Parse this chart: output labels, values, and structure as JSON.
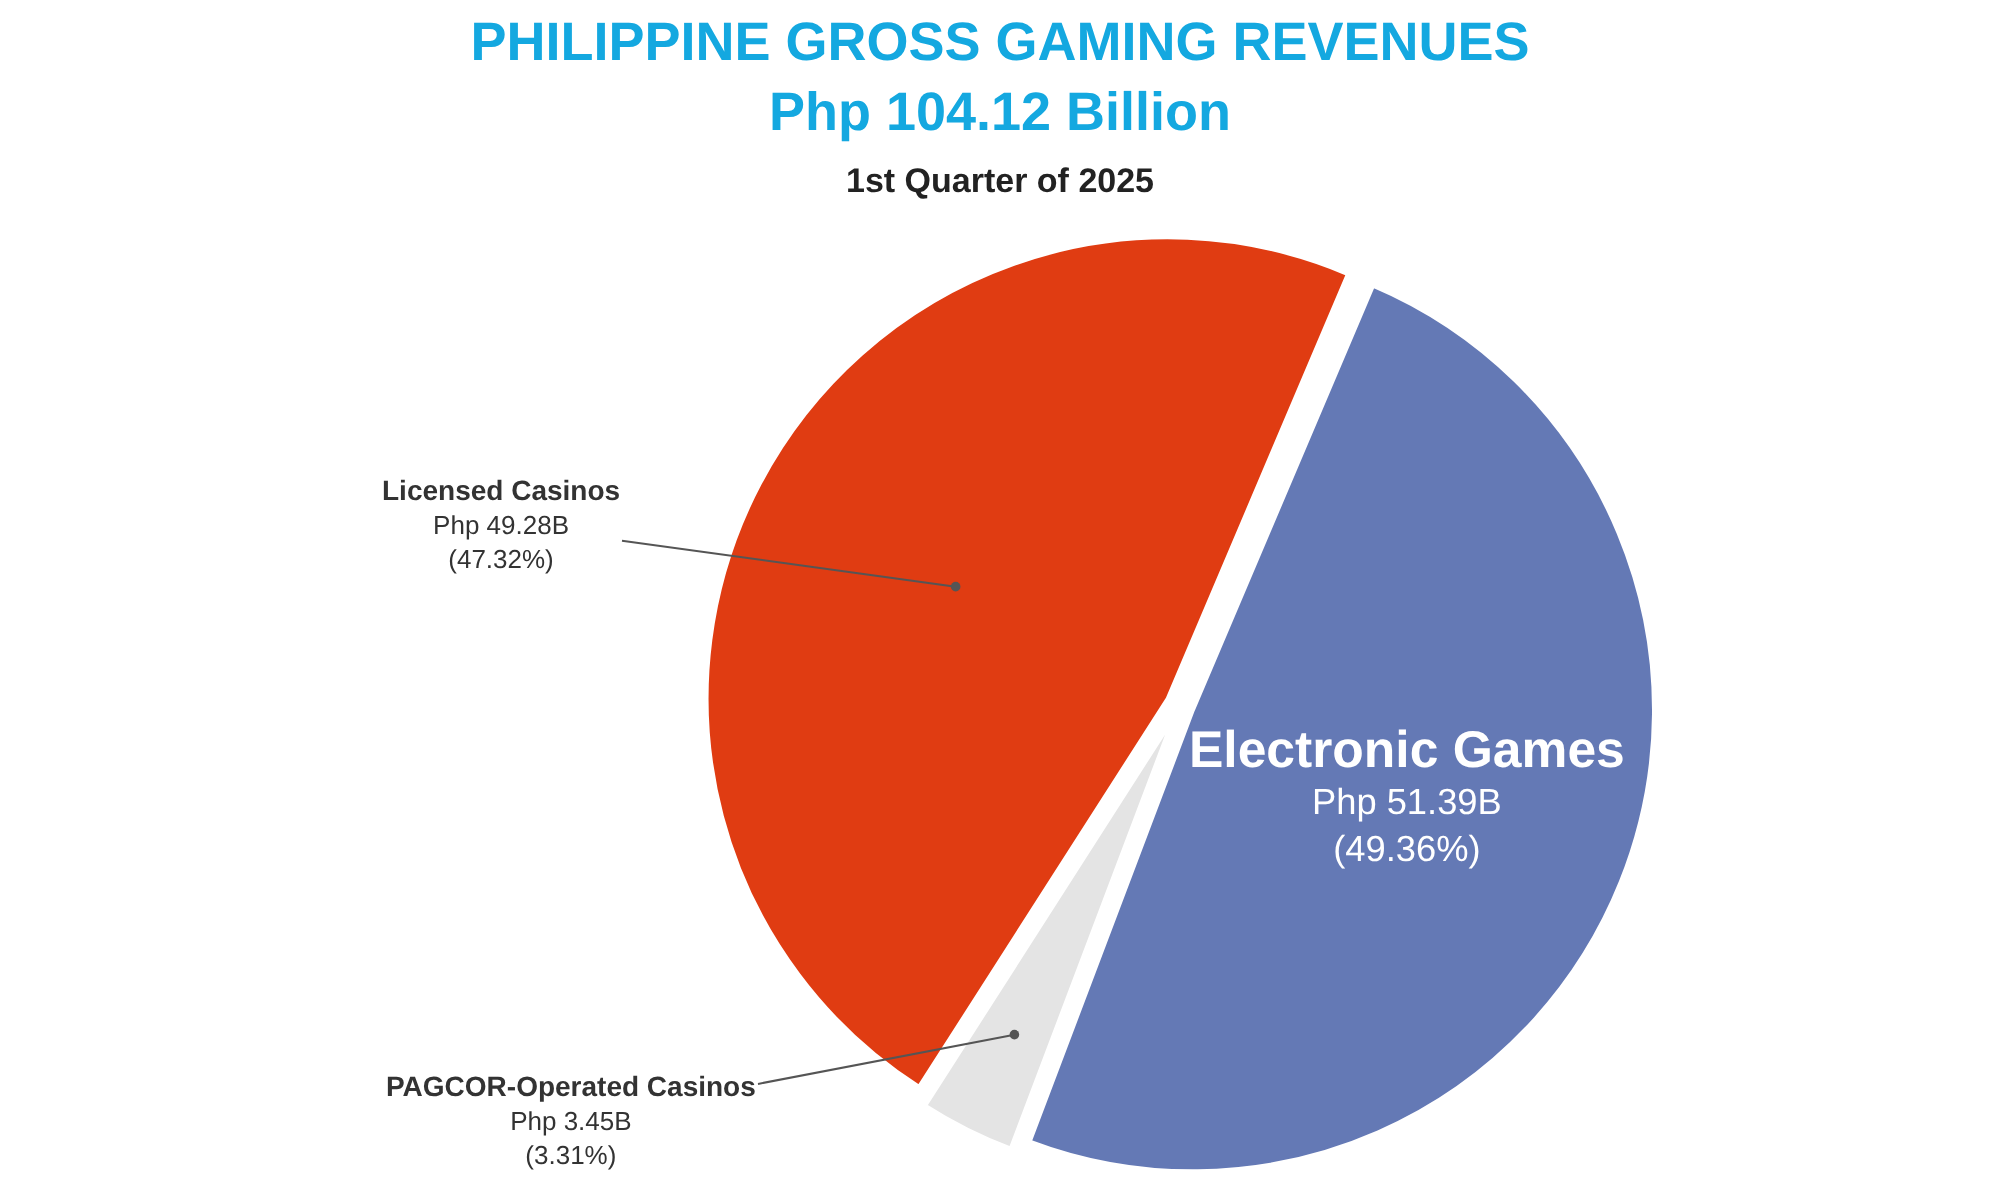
{
  "chart_data": {
    "type": "pie",
    "title": "PHILIPPINE GROSS GAMING REVENUES\nPhp 104.12 Billion",
    "subtitle": "1st Quarter of 2025",
    "categories": [
      "Electronic Games",
      "PAGCOR-Operated Casinos",
      "Licensed Casinos"
    ],
    "values": [
      49.36,
      3.31,
      47.32
    ],
    "colors": [
      "#6479b5",
      "#e4e4e4",
      "#e03c12"
    ],
    "value_labels": [
      "Php 51.39B\n(49.36%)",
      "Php 3.45B\n(3.31%)",
      "Php 49.28B\n(47.32%)"
    ],
    "legend": false
  }
}
